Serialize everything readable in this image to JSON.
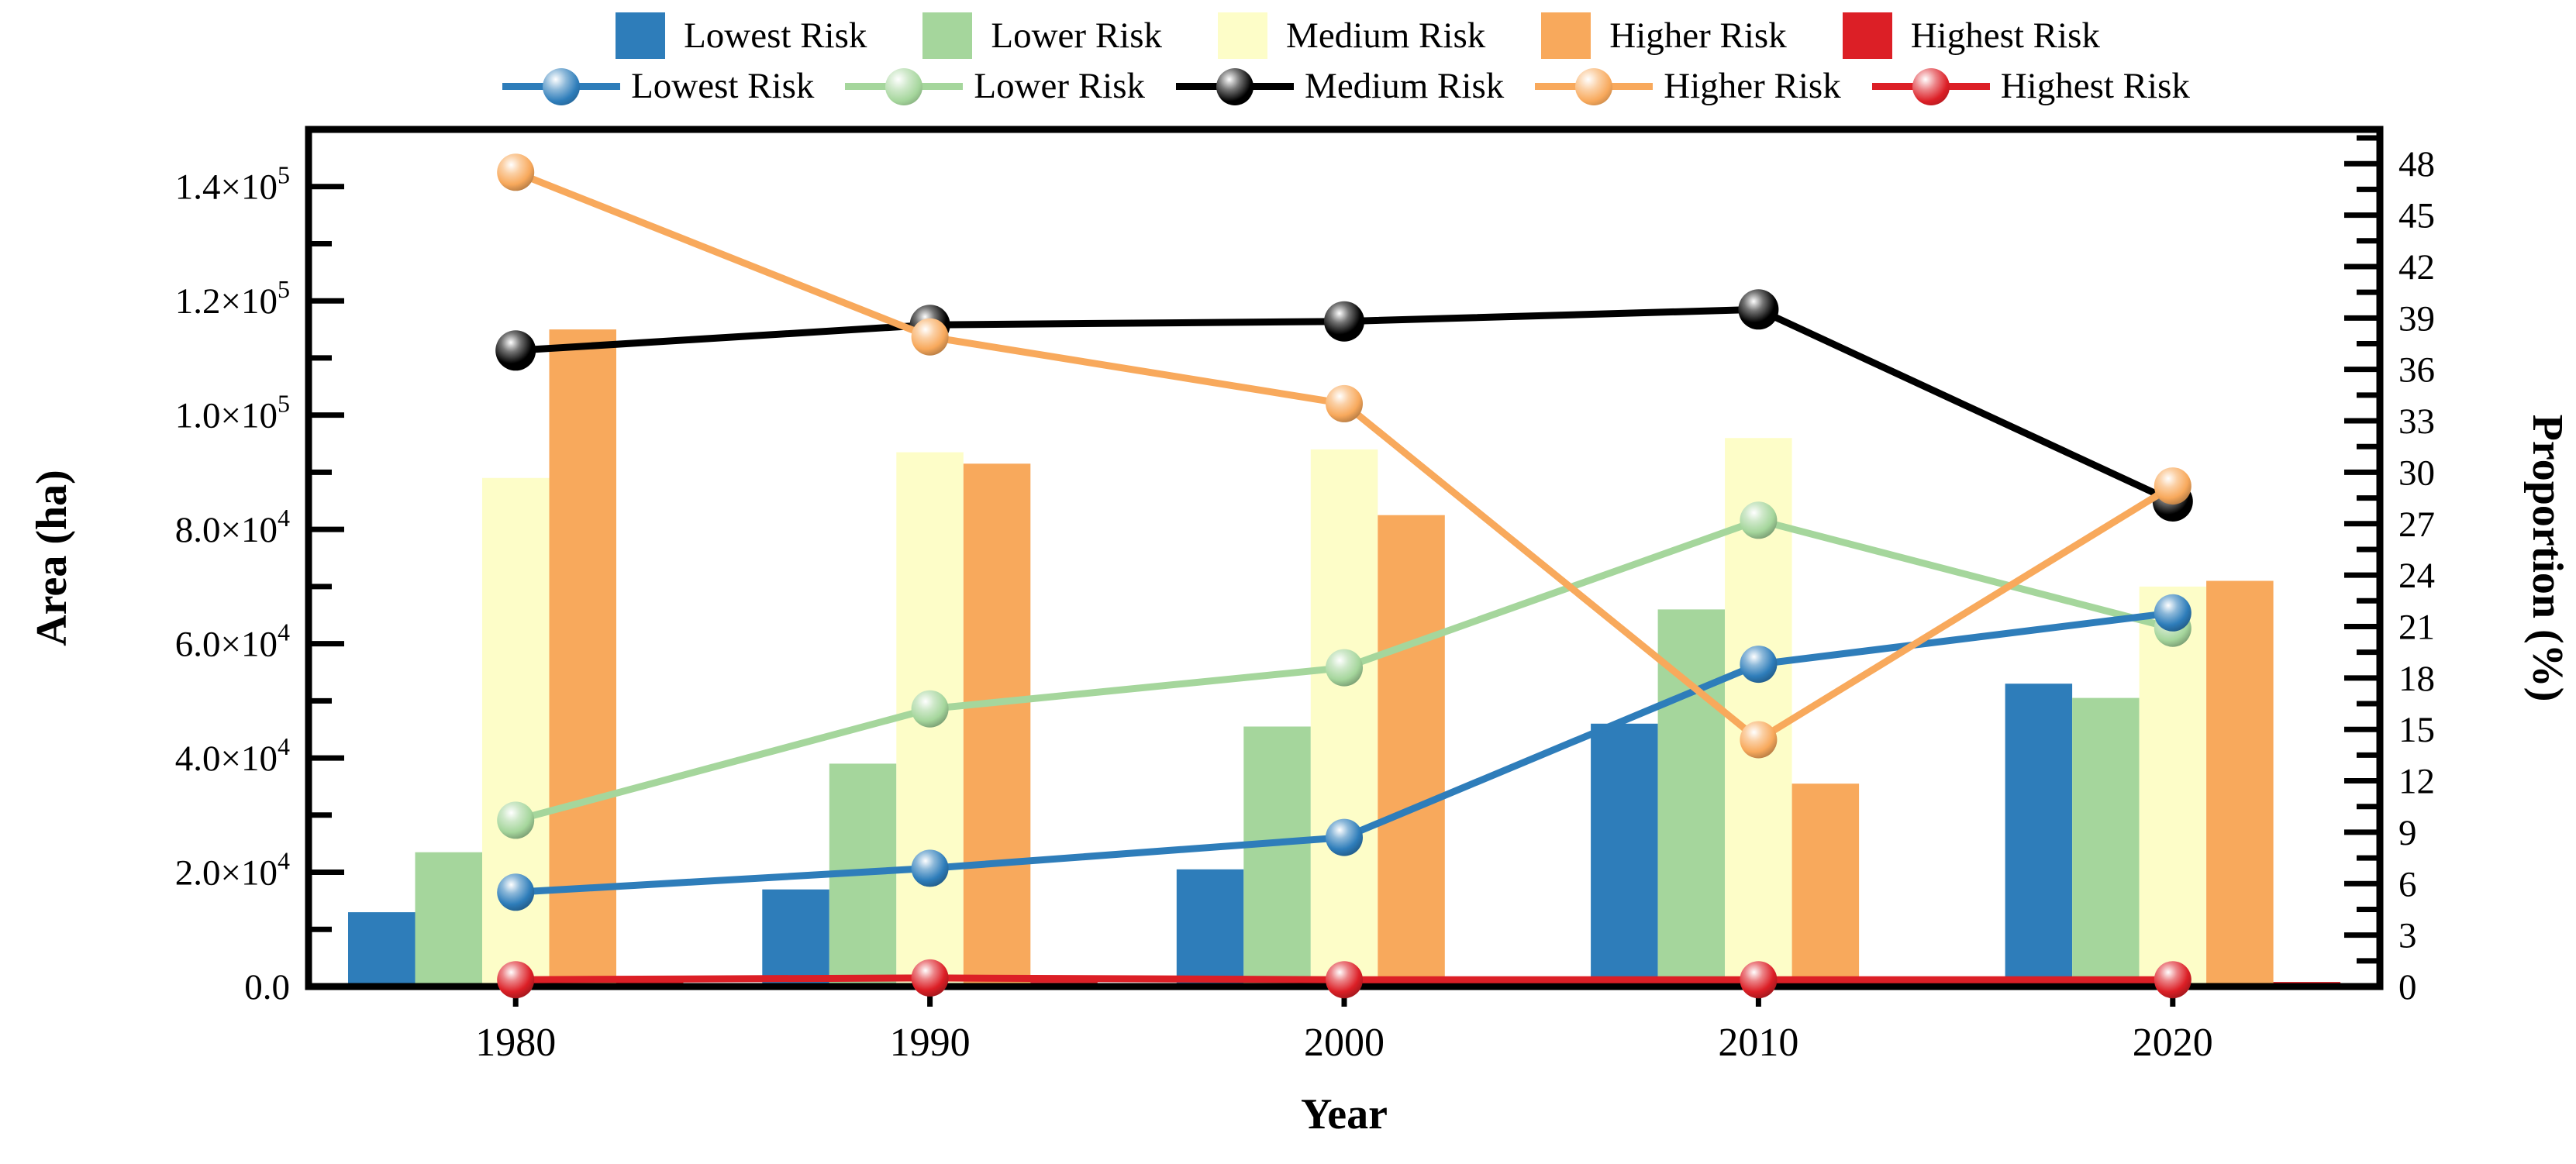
{
  "figure": {
    "background": "#ffffff",
    "accent_black": "#000000"
  },
  "legend": {
    "bar_entries": [
      {
        "label": "Lowest Risk",
        "color": "#2e7dba"
      },
      {
        "label": "Lower Risk",
        "color": "#a5d69c"
      },
      {
        "label": "Medium Risk",
        "color": "#fdfdc8"
      },
      {
        "label": "Higher Risk",
        "color": "#f8a95c"
      },
      {
        "label": "Highest Risk",
        "color": "#dc1f26"
      }
    ],
    "line_entries": [
      {
        "label": "Lowest Risk",
        "color": "#2e7dba"
      },
      {
        "label": "Lower Risk",
        "color": "#a5d69c"
      },
      {
        "label": "Medium Risk",
        "color": "#000000"
      },
      {
        "label": "Higher Risk",
        "color": "#f8a95c"
      },
      {
        "label": "Highest Risk",
        "color": "#dc1f26"
      }
    ]
  },
  "chart_data": {
    "type": "bar+line",
    "title": "",
    "categories": [
      "1980",
      "1990",
      "2000",
      "2010",
      "2020"
    ],
    "bar_series": [
      {
        "name": "Lowest Risk",
        "color": "#2e7dba",
        "values": [
          13000,
          17000,
          20500,
          46000,
          53000
        ]
      },
      {
        "name": "Lower Risk",
        "color": "#a5d69c",
        "values": [
          23500,
          39000,
          45500,
          66000,
          50500
        ]
      },
      {
        "name": "Medium Risk",
        "color": "#fdfdc8",
        "values": [
          89000,
          93500,
          94000,
          96000,
          70000
        ]
      },
      {
        "name": "Higher Risk",
        "color": "#f8a95c",
        "values": [
          115000,
          91500,
          82500,
          35500,
          71000
        ]
      },
      {
        "name": "Highest Risk",
        "color": "#dc1f26",
        "values": [
          800,
          800,
          800,
          800,
          800
        ]
      }
    ],
    "line_series": [
      {
        "name": "Lowest Risk",
        "color": "#2e7dba",
        "values": [
          5.5,
          6.9,
          8.7,
          18.8,
          21.8
        ]
      },
      {
        "name": "Lower Risk",
        "color": "#a5d69c",
        "values": [
          9.7,
          16.2,
          18.6,
          27.2,
          20.9
        ]
      },
      {
        "name": "Medium Risk",
        "color": "#000000",
        "values": [
          37.1,
          38.6,
          38.8,
          39.5,
          28.3
        ]
      },
      {
        "name": "Higher Risk",
        "color": "#f8a95c",
        "values": [
          47.5,
          37.9,
          34.0,
          14.4,
          29.2
        ]
      },
      {
        "name": "Highest Risk",
        "color": "#dc1f26",
        "values": [
          0.4,
          0.5,
          0.4,
          0.4,
          0.4
        ]
      }
    ],
    "left_axis": {
      "label": "Area (ha)",
      "min": 0,
      "max": 150000,
      "major_step": 20000,
      "minor_step": 10000,
      "tick_labels": [
        "0.0",
        "2.0×10^4",
        "4.0×10^4",
        "6.0×10^4",
        "8.0×10^4",
        "1.0×10^5",
        "1.2×10^5",
        "1.4×10^5"
      ]
    },
    "right_axis": {
      "label": "Proportion (%)",
      "min": 0,
      "max": 50,
      "major_step": 3,
      "minor_step": 1.5,
      "tick_labels": [
        "0",
        "3",
        "6",
        "9",
        "12",
        "15",
        "18",
        "21",
        "24",
        "27",
        "30",
        "33",
        "36",
        "39",
        "42",
        "45",
        "48"
      ]
    },
    "x_axis": {
      "label": "Year"
    },
    "grid": false,
    "legend_position": "top"
  }
}
